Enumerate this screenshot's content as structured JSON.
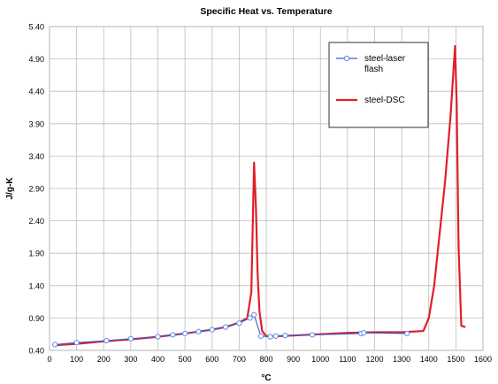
{
  "chart_data": {
    "type": "line",
    "title": "Specific Heat vs. Temperature",
    "xlabel": "°C",
    "ylabel": "J/g-K",
    "xlim": [
      0,
      1600
    ],
    "ylim": [
      0.4,
      5.4
    ],
    "xticks": [
      0,
      100,
      200,
      300,
      400,
      500,
      600,
      700,
      800,
      900,
      1000,
      1100,
      1200,
      1300,
      1400,
      1500,
      1600
    ],
    "yticks": [
      0.4,
      0.9,
      1.4,
      1.9,
      2.4,
      2.9,
      3.4,
      3.9,
      4.4,
      4.9,
      5.4
    ],
    "grid": true,
    "legend_position": "top-right",
    "series": [
      {
        "name": "steel-laser flash",
        "color": "#3a5fcd",
        "marker": "open-circle",
        "x": [
          20,
          100,
          210,
          300,
          400,
          455,
          500,
          550,
          600,
          650,
          700,
          740,
          755,
          780,
          815,
          835,
          870,
          970,
          1150,
          1160,
          1320
        ],
        "y": [
          0.49,
          0.52,
          0.55,
          0.58,
          0.61,
          0.64,
          0.66,
          0.69,
          0.72,
          0.76,
          0.82,
          0.9,
          0.95,
          0.62,
          0.61,
          0.62,
          0.63,
          0.64,
          0.66,
          0.67,
          0.66
        ]
      },
      {
        "name": "steel-DSC",
        "color": "#e0202a",
        "marker": "none",
        "x": [
          20,
          100,
          200,
          300,
          400,
          500,
          600,
          650,
          700,
          730,
          745,
          755,
          762,
          768,
          775,
          785,
          800,
          850,
          900,
          1000,
          1100,
          1200,
          1300,
          1380,
          1400,
          1420,
          1440,
          1460,
          1480,
          1497,
          1503,
          1510,
          1520,
          1535
        ],
        "y": [
          0.48,
          0.5,
          0.54,
          0.57,
          0.61,
          0.66,
          0.72,
          0.76,
          0.83,
          0.9,
          1.3,
          3.3,
          2.6,
          1.6,
          1.0,
          0.7,
          0.62,
          0.62,
          0.63,
          0.65,
          0.67,
          0.68,
          0.68,
          0.7,
          0.9,
          1.4,
          2.2,
          3.0,
          4.0,
          5.1,
          4.2,
          2.0,
          0.78,
          0.76
        ]
      }
    ]
  }
}
